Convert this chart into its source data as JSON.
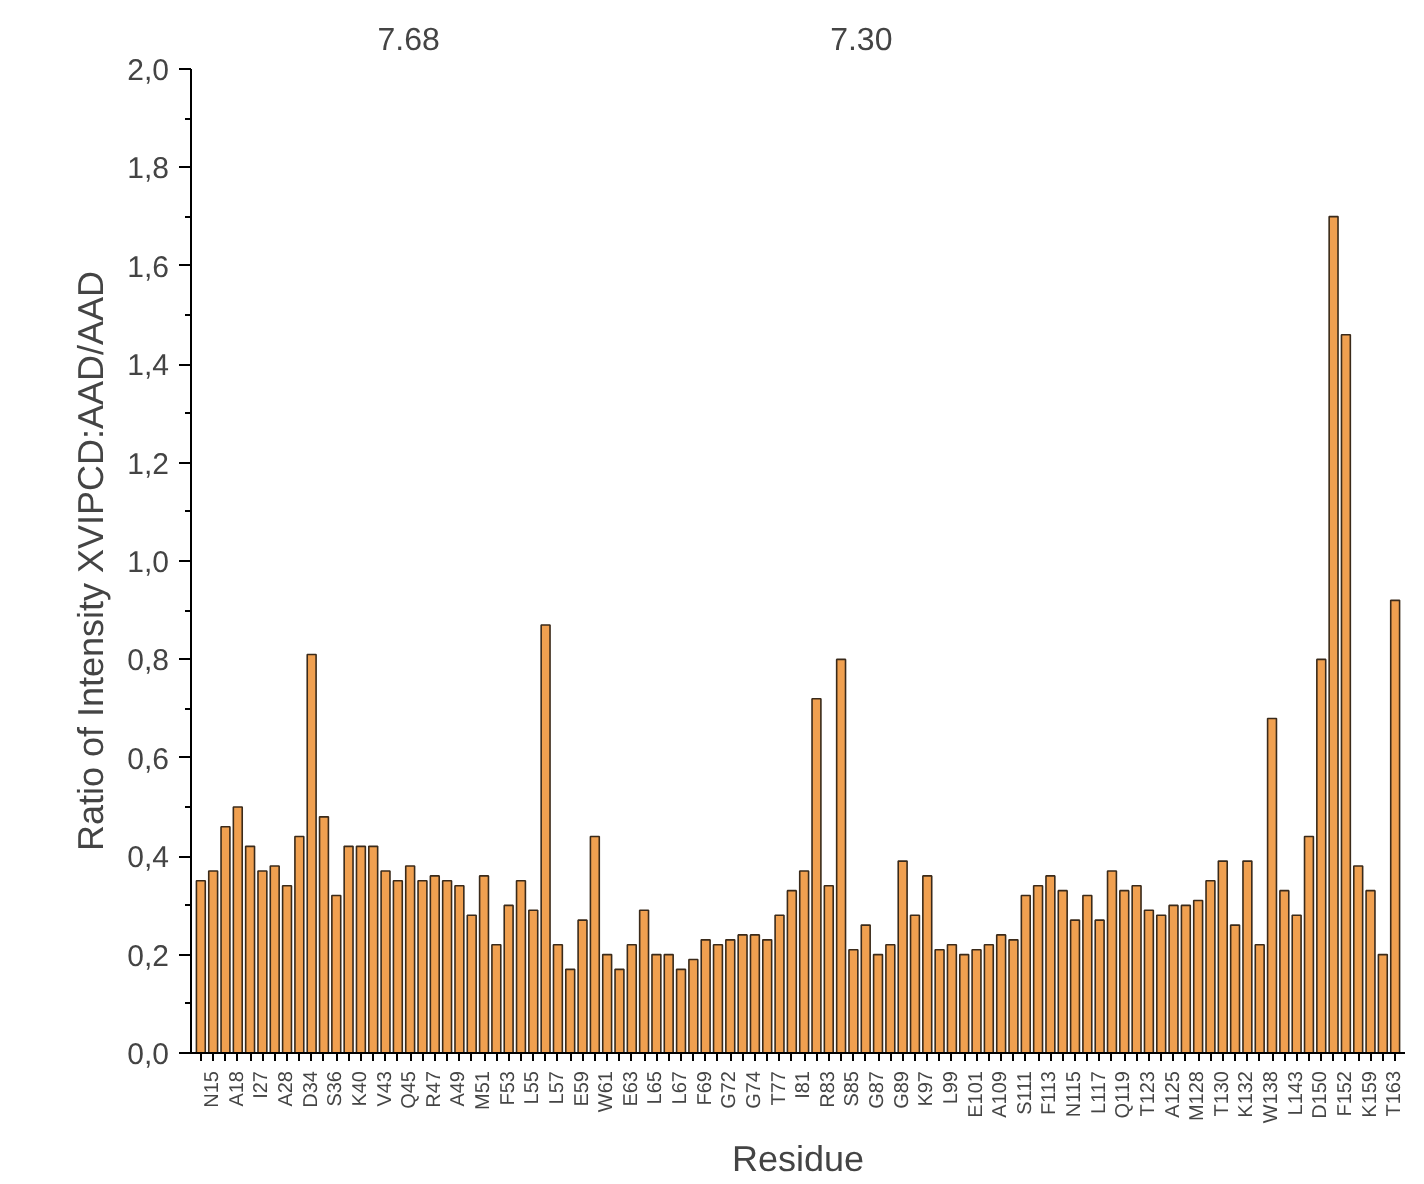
{
  "chart_data": {
    "type": "bar",
    "xlabel": "Residue",
    "ylabel": "Ratio of Intensity XVIPCD:AAD/AAD",
    "categories": [
      null,
      "N15",
      null,
      "A18",
      null,
      "I27",
      null,
      "A28",
      null,
      "D34",
      null,
      "S36",
      null,
      "K40",
      null,
      "V43",
      null,
      "Q45",
      null,
      "R47",
      null,
      "A49",
      null,
      "M51",
      null,
      "F53",
      null,
      "L55",
      null,
      "L57",
      null,
      "E59",
      null,
      "W61",
      null,
      "E63",
      null,
      "L65",
      null,
      "L67",
      null,
      "F69",
      null,
      "G72",
      null,
      "G74",
      null,
      "T77",
      null,
      "I81",
      null,
      "R83",
      null,
      "S85",
      null,
      "G87",
      null,
      "G89",
      null,
      "K97",
      null,
      "L99",
      null,
      "E101",
      null,
      "A109",
      null,
      "S111",
      null,
      "F113",
      null,
      "N115",
      null,
      "L117",
      null,
      "Q119",
      null,
      "T123",
      null,
      "A125",
      null,
      "M128",
      null,
      "T130",
      null,
      "K132",
      null,
      "W138",
      null,
      "L143",
      null,
      "D150",
      null,
      "F152",
      null,
      "K159",
      null,
      "T163"
    ],
    "values": [
      0.35,
      0.37,
      0.46,
      0.5,
      0.42,
      0.37,
      0.38,
      0.34,
      0.44,
      0.81,
      0.48,
      0.32,
      0.42,
      0.42,
      0.42,
      0.37,
      0.35,
      0.38,
      0.35,
      0.36,
      0.35,
      0.34,
      0.28,
      0.36,
      0.22,
      0.3,
      0.35,
      0.29,
      0.87,
      0.22,
      0.17,
      0.27,
      0.44,
      0.2,
      0.17,
      0.22,
      0.29,
      0.2,
      0.2,
      0.17,
      0.19,
      0.23,
      0.22,
      0.23,
      0.24,
      0.24,
      0.23,
      0.28,
      0.33,
      0.37,
      0.72,
      0.34,
      0.8,
      0.21,
      0.26,
      0.2,
      0.22,
      0.39,
      0.28,
      0.36,
      0.21,
      0.22,
      0.2,
      0.21,
      0.22,
      0.24,
      0.23,
      0.32,
      0.34,
      0.36,
      0.33,
      0.27,
      0.32,
      0.27,
      0.37,
      0.33,
      0.34,
      0.29,
      0.28,
      0.3,
      0.3,
      0.31,
      0.35,
      0.39,
      0.26,
      0.39,
      0.22,
      0.68,
      0.33,
      0.28,
      0.44,
      0.8,
      1.7,
      1.46,
      0.38,
      0.33,
      0.2,
      0.92
    ],
    "color": "#f0a050",
    "ylim": [
      0,
      2
    ],
    "yticks": [
      {
        "value": 0,
        "label": "0,0"
      },
      {
        "value": 0.2,
        "label": "0,2"
      },
      {
        "value": 0.4,
        "label": "0,4"
      },
      {
        "value": 0.6,
        "label": "0,6"
      },
      {
        "value": 0.8,
        "label": "0,8"
      },
      {
        "value": 1.0,
        "label": "1,0"
      },
      {
        "value": 1.2,
        "label": "1,2"
      },
      {
        "value": 1.4,
        "label": "1,4"
      },
      {
        "value": 1.6,
        "label": "1,6"
      },
      {
        "value": 1.8,
        "label": "1,8"
      },
      {
        "value": 2.0,
        "label": "2,0"
      }
    ],
    "grid": false,
    "annotations": [
      "7.68",
      "7.30"
    ]
  }
}
